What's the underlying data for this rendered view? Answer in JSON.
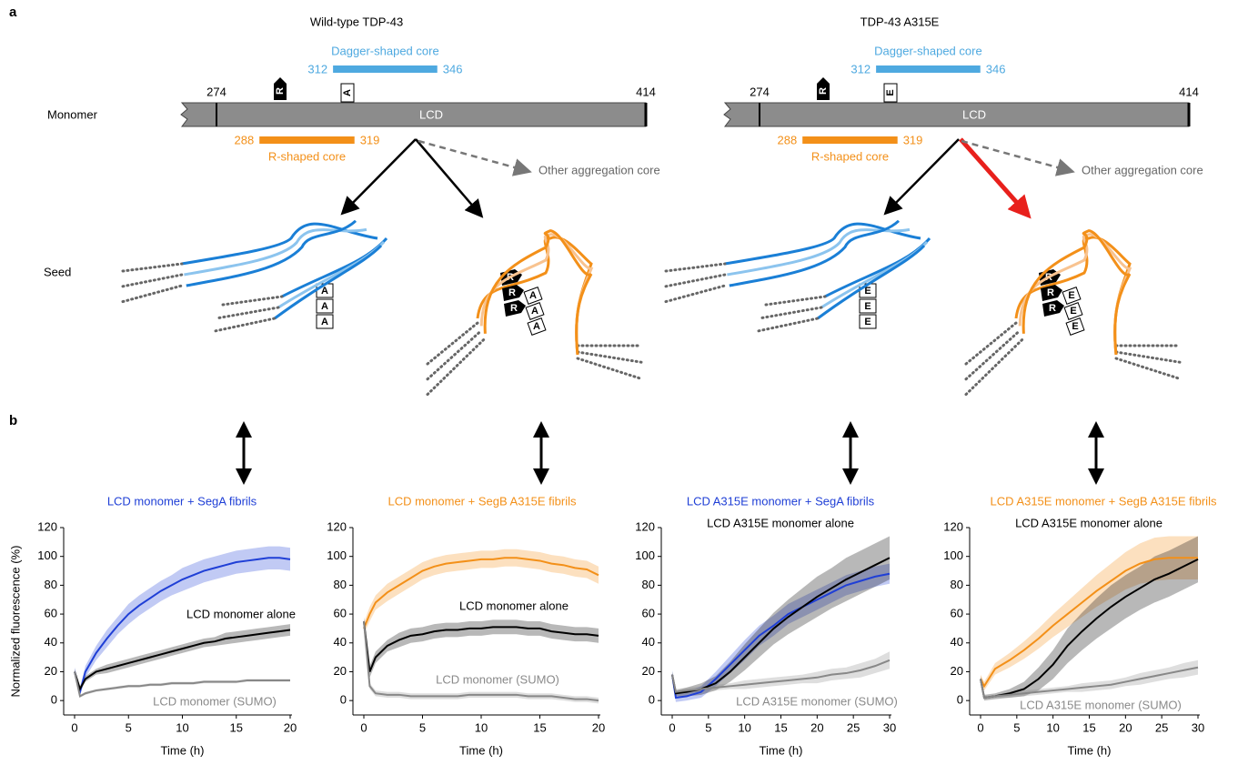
{
  "figure": {
    "panel_a": "a",
    "panel_b": "b",
    "row_labels": [
      "Monomer",
      "Seed"
    ],
    "constructs": [
      {
        "title": "Wild-type TDP-43",
        "mutant_residue": "A"
      },
      {
        "title": "TDP-43 A315E",
        "mutant_residue": "E"
      }
    ],
    "arg_residue": "R",
    "lcd": {
      "label": "LCD",
      "start": 274,
      "end": 414
    },
    "dagger": {
      "label": "Dagger-shaped core",
      "start": 312,
      "end": 346
    },
    "r_core": {
      "label": "R-shaped core",
      "start": 288,
      "end": 319
    },
    "other_core": "Other aggregation core"
  },
  "chart_data": [
    {
      "type": "line",
      "xlabel": "Time (h)",
      "ylabel": "Normalized fluorescence (%)",
      "xlim": [
        0,
        20
      ],
      "ylim": [
        -10,
        120
      ],
      "xticks": [
        0,
        5,
        10,
        15,
        20
      ],
      "yticks": [
        0,
        20,
        40,
        60,
        80,
        100,
        120
      ],
      "x": [
        0,
        0.5,
        1,
        2,
        3,
        4,
        5,
        6,
        7,
        8,
        9,
        10,
        11,
        12,
        13,
        14,
        15,
        16,
        17,
        18,
        19,
        20
      ],
      "series": [
        {
          "name": "LCD monomer + SegA fibrils",
          "color": "#1f3fd6",
          "values": [
            20,
            6,
            20,
            33,
            43,
            52,
            60,
            66,
            71,
            76,
            80,
            84,
            87,
            90,
            92,
            94,
            96,
            97,
            98,
            99,
            99,
            98
          ],
          "errors": [
            3,
            3,
            4,
            5,
            6,
            6,
            7,
            7,
            7,
            7,
            7,
            8,
            8,
            8,
            8,
            8,
            8,
            8,
            8,
            8,
            8,
            8
          ]
        },
        {
          "name": "LCD monomer alone",
          "color": "#000000",
          "values": [
            20,
            8,
            15,
            20,
            22,
            24,
            26,
            28,
            30,
            32,
            34,
            36,
            38,
            40,
            41,
            43,
            44,
            45,
            46,
            47,
            48,
            49
          ],
          "errors": [
            2,
            2,
            2,
            2,
            3,
            3,
            3,
            3,
            3,
            3,
            3,
            3,
            3,
            3,
            3,
            4,
            4,
            4,
            4,
            4,
            4,
            4
          ]
        },
        {
          "name": "LCD monomer (SUMO)",
          "color": "#888888",
          "values": [
            20,
            3,
            5,
            7,
            8,
            9,
            10,
            10,
            11,
            11,
            12,
            12,
            12,
            13,
            13,
            13,
            13,
            14,
            14,
            14,
            14,
            14
          ],
          "errors": [
            1,
            1,
            1,
            1,
            1,
            1,
            1,
            1,
            1,
            1,
            1,
            1,
            1,
            1,
            1,
            1,
            1,
            1,
            1,
            1,
            1,
            1
          ]
        }
      ]
    },
    {
      "type": "line",
      "xlabel": "Time (h)",
      "xlim": [
        0,
        20
      ],
      "ylim": [
        -10,
        120
      ],
      "xticks": [
        0,
        5,
        10,
        15,
        20
      ],
      "yticks": [
        0,
        20,
        40,
        60,
        80,
        100,
        120
      ],
      "x": [
        0,
        0.5,
        1,
        2,
        3,
        4,
        5,
        6,
        7,
        8,
        9,
        10,
        11,
        12,
        13,
        14,
        15,
        16,
        17,
        18,
        19,
        20
      ],
      "series": [
        {
          "name": "LCD monomer + SegB A315E fibrils",
          "color": "#f39019",
          "values": [
            50,
            60,
            68,
            75,
            80,
            85,
            90,
            93,
            95,
            96,
            97,
            98,
            98,
            99,
            99,
            98,
            97,
            95,
            94,
            92,
            91,
            87
          ],
          "errors": [
            4,
            5,
            5,
            6,
            6,
            6,
            6,
            6,
            6,
            6,
            6,
            6,
            6,
            6,
            6,
            6,
            6,
            6,
            6,
            6,
            6,
            6
          ]
        },
        {
          "name": "LCD monomer alone",
          "color": "#000000",
          "values": [
            55,
            20,
            30,
            38,
            42,
            45,
            46,
            48,
            49,
            49,
            50,
            50,
            51,
            51,
            51,
            50,
            50,
            48,
            47,
            46,
            46,
            45
          ],
          "errors": [
            3,
            4,
            4,
            4,
            5,
            5,
            5,
            5,
            5,
            5,
            5,
            5,
            5,
            5,
            5,
            5,
            5,
            5,
            5,
            5,
            5,
            5
          ]
        },
        {
          "name": "LCD monomer (SUMO)",
          "color": "#888888",
          "values": [
            55,
            10,
            5,
            4,
            4,
            3,
            3,
            3,
            3,
            3,
            4,
            4,
            4,
            4,
            4,
            3,
            3,
            3,
            2,
            1,
            1,
            0
          ],
          "errors": [
            2,
            2,
            2,
            2,
            2,
            2,
            2,
            2,
            2,
            2,
            2,
            2,
            2,
            2,
            2,
            2,
            2,
            2,
            2,
            2,
            2,
            2
          ]
        }
      ]
    },
    {
      "type": "line",
      "xlabel": "Time (h)",
      "xlim": [
        0,
        30
      ],
      "ylim": [
        -10,
        120
      ],
      "xticks": [
        0,
        5,
        10,
        15,
        20,
        25,
        30
      ],
      "yticks": [
        0,
        20,
        40,
        60,
        80,
        100,
        120
      ],
      "x": [
        0,
        0.5,
        2,
        4,
        6,
        8,
        10,
        12,
        14,
        16,
        18,
        20,
        22,
        24,
        26,
        28,
        30
      ],
      "series": [
        {
          "name": "LCD A315E monomer + SegA fibrils",
          "color": "#1f3fd6",
          "values": [
            18,
            2,
            3,
            6,
            15,
            25,
            35,
            45,
            52,
            60,
            65,
            70,
            75,
            80,
            83,
            86,
            88
          ],
          "errors": [
            3,
            3,
            3,
            4,
            5,
            6,
            7,
            7,
            7,
            7,
            7,
            7,
            7,
            7,
            7,
            7,
            7
          ]
        },
        {
          "name": "LCD A315E monomer alone",
          "color": "#000000",
          "values": [
            18,
            5,
            6,
            8,
            12,
            20,
            30,
            40,
            50,
            58,
            65,
            72,
            78,
            84,
            89,
            94,
            99
          ],
          "errors": [
            2,
            2,
            3,
            4,
            5,
            7,
            9,
            10,
            11,
            12,
            13,
            14,
            14,
            15,
            15,
            15,
            15
          ]
        },
        {
          "name": "LCD A315E monomer (SUMO)",
          "color": "#888888",
          "values": [
            18,
            6,
            7,
            8,
            9,
            10,
            11,
            12,
            13,
            14,
            15,
            16,
            18,
            19,
            21,
            24,
            28
          ],
          "errors": [
            2,
            2,
            2,
            2,
            2,
            2,
            3,
            3,
            3,
            3,
            3,
            4,
            4,
            4,
            5,
            5,
            6
          ]
        }
      ]
    },
    {
      "type": "line",
      "xlabel": "Time (h)",
      "xlim": [
        0,
        30
      ],
      "ylim": [
        -10,
        120
      ],
      "xticks": [
        0,
        5,
        10,
        15,
        20,
        25,
        30
      ],
      "yticks": [
        0,
        20,
        40,
        60,
        80,
        100,
        120
      ],
      "x": [
        0,
        0.5,
        2,
        4,
        6,
        8,
        10,
        12,
        14,
        16,
        18,
        20,
        22,
        24,
        26,
        28,
        30
      ],
      "series": [
        {
          "name": "LCD A315E monomer + SegB A315E fibrils",
          "color": "#f39019",
          "values": [
            15,
            10,
            22,
            28,
            35,
            43,
            52,
            60,
            68,
            76,
            83,
            90,
            95,
            98,
            99,
            99,
            99
          ],
          "errors": [
            3,
            3,
            4,
            5,
            6,
            7,
            8,
            9,
            10,
            11,
            12,
            13,
            14,
            15,
            15,
            15,
            15
          ]
        },
        {
          "name": "LCD A315E monomer alone",
          "color": "#000000",
          "values": [
            15,
            2,
            3,
            5,
            8,
            15,
            25,
            38,
            48,
            57,
            65,
            72,
            78,
            84,
            88,
            93,
            98
          ],
          "errors": [
            2,
            2,
            2,
            3,
            5,
            8,
            10,
            12,
            13,
            14,
            15,
            15,
            15,
            16,
            16,
            16,
            16
          ]
        },
        {
          "name": "LCD A315E monomer (SUMO)",
          "color": "#888888",
          "values": [
            15,
            2,
            3,
            4,
            5,
            6,
            7,
            8,
            9,
            10,
            11,
            13,
            15,
            17,
            19,
            21,
            23
          ],
          "errors": [
            1,
            1,
            1,
            2,
            2,
            2,
            2,
            2,
            3,
            3,
            3,
            3,
            4,
            4,
            4,
            5,
            5
          ]
        }
      ]
    }
  ]
}
